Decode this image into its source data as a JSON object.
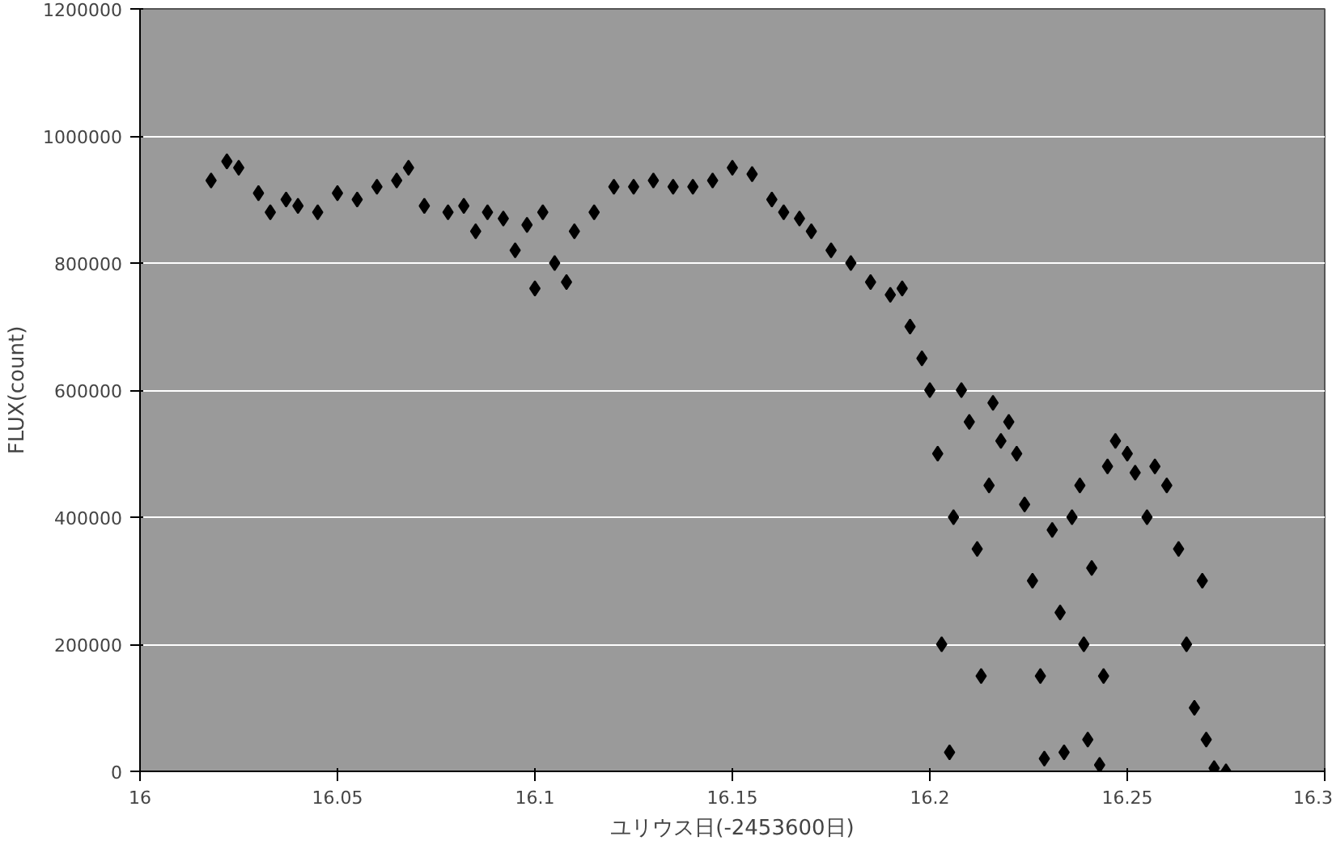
{
  "chart_data": {
    "type": "scatter",
    "xlabel": "ユリウス日(-2453600日)",
    "ylabel": "FLUX(count)",
    "xlim": [
      16,
      16.3
    ],
    "xticks": [
      16,
      16.05,
      16.1,
      16.15,
      16.2,
      16.25,
      16.3
    ],
    "ylim": [
      0,
      1200000
    ],
    "yticks": [
      0,
      200000,
      400000,
      600000,
      800000,
      1000000,
      1200000
    ],
    "grid": "y",
    "marker": "diamond",
    "series": [
      {
        "color": "#000000",
        "x": [
          16.018,
          16.022,
          16.025,
          16.03,
          16.033,
          16.037,
          16.04,
          16.045,
          16.05,
          16.055,
          16.06,
          16.065,
          16.068,
          16.072,
          16.078,
          16.082,
          16.085,
          16.088,
          16.092,
          16.095,
          16.098,
          16.1,
          16.102,
          16.105,
          16.108,
          16.11,
          16.115,
          16.12,
          16.125,
          16.13,
          16.135,
          16.14,
          16.145,
          16.15,
          16.155,
          16.16,
          16.163,
          16.167,
          16.17,
          16.175,
          16.18,
          16.185,
          16.19,
          16.193,
          16.195,
          16.198,
          16.2,
          16.202,
          16.203,
          16.205,
          16.206,
          16.208,
          16.21,
          16.212,
          16.213,
          16.215,
          16.216,
          16.218,
          16.22,
          16.222,
          16.224,
          16.226,
          16.228,
          16.229,
          16.231,
          16.233,
          16.234,
          16.236,
          16.238,
          16.239,
          16.24,
          16.241,
          16.243,
          16.244,
          16.245,
          16.247,
          16.25,
          16.252,
          16.255,
          16.257,
          16.26,
          16.263,
          16.265,
          16.267,
          16.269,
          16.27,
          16.272,
          16.275
        ],
        "values": [
          930000,
          960000,
          950000,
          910000,
          880000,
          900000,
          890000,
          880000,
          910000,
          900000,
          920000,
          930000,
          950000,
          890000,
          880000,
          890000,
          850000,
          880000,
          870000,
          820000,
          860000,
          760000,
          880000,
          800000,
          770000,
          850000,
          880000,
          920000,
          920000,
          930000,
          920000,
          920000,
          930000,
          950000,
          940000,
          900000,
          880000,
          870000,
          850000,
          820000,
          800000,
          770000,
          750000,
          760000,
          700000,
          650000,
          600000,
          500000,
          200000,
          30000,
          400000,
          600000,
          550000,
          350000,
          150000,
          450000,
          580000,
          520000,
          550000,
          500000,
          420000,
          300000,
          150000,
          20000,
          380000,
          250000,
          30000,
          400000,
          450000,
          200000,
          50000,
          320000,
          10000,
          150000,
          480000,
          520000,
          500000,
          470000,
          400000,
          480000,
          450000,
          350000,
          200000,
          100000,
          300000,
          50000,
          5000,
          0
        ]
      }
    ]
  }
}
